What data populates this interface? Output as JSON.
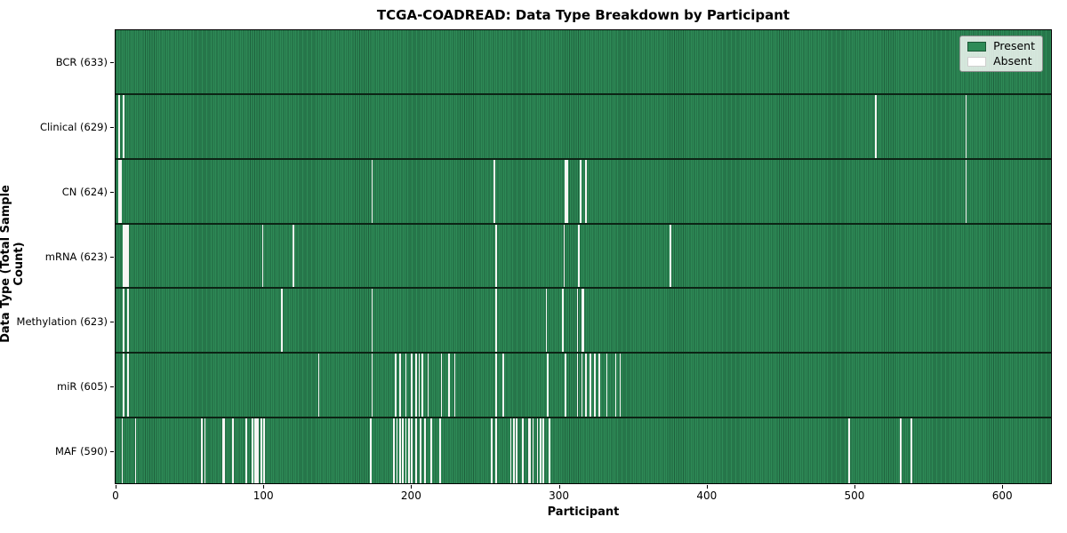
{
  "chart_data": {
    "type": "heatmap",
    "title": "TCGA-COADREAD: Data Type Breakdown by Participant",
    "xlabel": "Participant",
    "ylabel": "Data Type (Total Sample Count)",
    "x_ticks": [
      0,
      100,
      200,
      300,
      400,
      500,
      600
    ],
    "xlim": [
      0,
      633
    ],
    "total_participants": 633,
    "grid": false,
    "legend_position": "upper right",
    "legend_entries": [
      {
        "label": "Present",
        "color": "#2e8b57"
      },
      {
        "label": "Absent",
        "color": "#ffffff"
      }
    ],
    "colors": {
      "present_fill": "#2e8b57",
      "present_edge": "#1e603c",
      "absent_fill": "#ffffff",
      "row_divider": "#0c2415"
    },
    "rows": [
      {
        "label": "BCR (633)",
        "data_type": "BCR",
        "present_count": 633,
        "absent_participants": []
      },
      {
        "label": "Clinical (629)",
        "data_type": "Clinical",
        "present_count": 629,
        "absent_participants": [
          2,
          5,
          514,
          575
        ]
      },
      {
        "label": "CN (624)",
        "data_type": "CN",
        "present_count": 624,
        "absent_participants": [
          2,
          3,
          173,
          256,
          304,
          305,
          314,
          318,
          575
        ]
      },
      {
        "label": "mRNA (623)",
        "data_type": "mRNA",
        "present_count": 623,
        "absent_participants": [
          5,
          6,
          7,
          8,
          99,
          120,
          257,
          303,
          313,
          375
        ]
      },
      {
        "label": "Methylation (623)",
        "data_type": "Methylation",
        "present_count": 623,
        "absent_participants": [
          5,
          8,
          112,
          173,
          257,
          291,
          302,
          312,
          315,
          316
        ]
      },
      {
        "label": "miR (605)",
        "data_type": "miR",
        "present_count": 605,
        "absent_participants": [
          5,
          8,
          137,
          173,
          189,
          192,
          196,
          200,
          203,
          205,
          207,
          211,
          220,
          225,
          229,
          257,
          262,
          292,
          304,
          312,
          315,
          318,
          321,
          324,
          327,
          332,
          338,
          341
        ]
      },
      {
        "label": "MAF (590)",
        "data_type": "MAF",
        "present_count": 590,
        "absent_participants": [
          4,
          13,
          58,
          60,
          72,
          73,
          79,
          88,
          92,
          94,
          95,
          96,
          98,
          100,
          172,
          188,
          190,
          192,
          194,
          196,
          198,
          200,
          203,
          206,
          209,
          213,
          219,
          254,
          257,
          267,
          269,
          271,
          275,
          279,
          280,
          282,
          285,
          287,
          289,
          293,
          496,
          531,
          538
        ]
      }
    ]
  }
}
